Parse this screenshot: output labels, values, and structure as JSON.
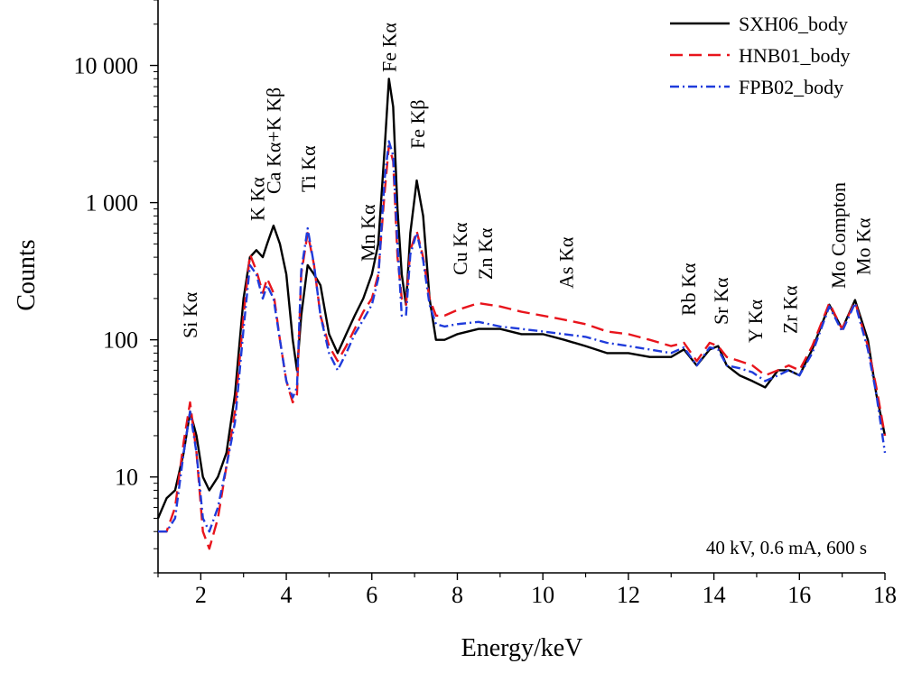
{
  "chart_data": {
    "type": "line",
    "xlabel": "Energy/keV",
    "ylabel": "Counts",
    "x_range": [
      1,
      18
    ],
    "y_range": [
      2,
      30000
    ],
    "y_scale": "log",
    "grid": false,
    "legend_position": "top-right",
    "x_ticks": [
      "2",
      "4",
      "6",
      "8",
      "10",
      "12",
      "14",
      "16",
      "18"
    ],
    "y_ticks": [
      {
        "value": 10,
        "label": "10"
      },
      {
        "value": 100,
        "label": "100"
      },
      {
        "value": 1000,
        "label": "1 000"
      },
      {
        "value": 10000,
        "label": "10 000"
      }
    ],
    "annotation": "40 kV, 0.6 mA, 600 s",
    "peak_labels": [
      {
        "energy": 1.74,
        "label": "Si Kα"
      },
      {
        "energy": 3.31,
        "label": "K Kα"
      },
      {
        "energy": 3.69,
        "label": "Ca Kα+K Kβ"
      },
      {
        "energy": 4.51,
        "label": "Ti Kα"
      },
      {
        "energy": 5.9,
        "label": "Mn Kα"
      },
      {
        "energy": 6.4,
        "label": "Fe Kα"
      },
      {
        "energy": 7.06,
        "label": "Fe Kβ"
      },
      {
        "energy": 8.05,
        "label": "Cu Kα"
      },
      {
        "energy": 8.64,
        "label": "Zn Kα"
      },
      {
        "energy": 10.54,
        "label": "As Kα"
      },
      {
        "energy": 13.4,
        "label": "Rb Kα"
      },
      {
        "energy": 14.16,
        "label": "Sr Kα"
      },
      {
        "energy": 14.96,
        "label": "Y Kα"
      },
      {
        "energy": 15.77,
        "label": "Zr Kα"
      },
      {
        "energy": 16.9,
        "label": "Mo Compton"
      },
      {
        "energy": 17.48,
        "label": "Mo Kα"
      }
    ],
    "series": [
      {
        "name": "SXH06_body",
        "color": "#000000",
        "dash": "solid",
        "x": [
          1.0,
          1.2,
          1.4,
          1.6,
          1.75,
          1.9,
          2.05,
          2.2,
          2.4,
          2.6,
          2.8,
          3.0,
          3.15,
          3.3,
          3.45,
          3.55,
          3.7,
          3.85,
          4.0,
          4.15,
          4.25,
          4.35,
          4.5,
          4.65,
          4.8,
          5.0,
          5.2,
          5.4,
          5.6,
          5.8,
          6.0,
          6.15,
          6.3,
          6.4,
          6.5,
          6.6,
          6.7,
          6.8,
          6.9,
          7.05,
          7.2,
          7.35,
          7.5,
          7.7,
          8.0,
          8.5,
          9.0,
          9.5,
          10.0,
          10.5,
          11.0,
          11.5,
          12.0,
          12.5,
          13.0,
          13.3,
          13.6,
          13.9,
          14.1,
          14.3,
          14.6,
          14.9,
          15.2,
          15.5,
          15.75,
          16.0,
          16.3,
          16.7,
          17.0,
          17.3,
          17.6,
          17.8,
          18.0
        ],
        "y": [
          5,
          7,
          8,
          15,
          30,
          20,
          10,
          8,
          10,
          15,
          40,
          200,
          400,
          450,
          400,
          500,
          680,
          500,
          300,
          100,
          60,
          150,
          350,
          300,
          250,
          110,
          80,
          110,
          150,
          200,
          300,
          500,
          2500,
          8000,
          5000,
          900,
          300,
          180,
          600,
          1450,
          800,
          200,
          100,
          100,
          110,
          120,
          120,
          110,
          110,
          100,
          90,
          80,
          80,
          75,
          75,
          85,
          65,
          85,
          90,
          65,
          55,
          50,
          45,
          60,
          60,
          55,
          85,
          180,
          120,
          195,
          100,
          40,
          20
        ]
      },
      {
        "name": "HNB01_body",
        "color": "#e8141c",
        "dash": "dashed",
        "x": [
          1.0,
          1.2,
          1.4,
          1.6,
          1.75,
          1.9,
          2.05,
          2.2,
          2.4,
          2.6,
          2.8,
          3.0,
          3.15,
          3.3,
          3.45,
          3.55,
          3.7,
          3.85,
          4.0,
          4.15,
          4.25,
          4.35,
          4.5,
          4.65,
          4.8,
          5.0,
          5.2,
          5.4,
          5.6,
          5.8,
          6.0,
          6.15,
          6.3,
          6.4,
          6.5,
          6.6,
          6.7,
          6.8,
          6.9,
          7.05,
          7.2,
          7.35,
          7.5,
          7.7,
          8.0,
          8.5,
          9.0,
          9.5,
          10.0,
          10.5,
          11.0,
          11.5,
          12.0,
          12.5,
          13.0,
          13.3,
          13.6,
          13.9,
          14.1,
          14.3,
          14.6,
          14.9,
          15.2,
          15.5,
          15.75,
          16.0,
          16.3,
          16.7,
          17.0,
          17.3,
          17.6,
          17.8,
          18.0
        ],
        "y": [
          4,
          4,
          6,
          18,
          35,
          15,
          4,
          3,
          5,
          12,
          30,
          150,
          420,
          320,
          220,
          280,
          220,
          100,
          50,
          35,
          40,
          300,
          600,
          350,
          150,
          90,
          70,
          90,
          120,
          160,
          200,
          300,
          1200,
          2600,
          2000,
          400,
          200,
          180,
          450,
          620,
          400,
          200,
          150,
          150,
          165,
          185,
          175,
          160,
          150,
          140,
          130,
          115,
          110,
          100,
          90,
          95,
          70,
          95,
          90,
          75,
          70,
          65,
          55,
          60,
          65,
          60,
          90,
          185,
          120,
          190,
          90,
          45,
          20
        ]
      },
      {
        "name": "FPB02_body",
        "color": "#1f3bdb",
        "dash": "dashdot",
        "x": [
          1.0,
          1.2,
          1.4,
          1.6,
          1.75,
          1.9,
          2.05,
          2.2,
          2.4,
          2.6,
          2.8,
          3.0,
          3.15,
          3.3,
          3.45,
          3.55,
          3.7,
          3.85,
          4.0,
          4.15,
          4.25,
          4.35,
          4.5,
          4.65,
          4.8,
          5.0,
          5.2,
          5.4,
          5.6,
          5.8,
          6.0,
          6.15,
          6.3,
          6.4,
          6.5,
          6.6,
          6.7,
          6.8,
          6.9,
          7.05,
          7.2,
          7.35,
          7.5,
          7.7,
          8.0,
          8.5,
          9.0,
          9.5,
          10.0,
          10.5,
          11.0,
          11.5,
          12.0,
          12.5,
          13.0,
          13.3,
          13.6,
          13.9,
          14.1,
          14.3,
          14.6,
          14.9,
          15.2,
          15.5,
          15.75,
          16.0,
          16.3,
          16.7,
          17.0,
          17.3,
          17.6,
          17.8,
          18.0
        ],
        "y": [
          4,
          4,
          5,
          15,
          30,
          15,
          5,
          4,
          6,
          12,
          25,
          120,
          350,
          300,
          200,
          250,
          200,
          100,
          50,
          38,
          45,
          320,
          650,
          350,
          150,
          80,
          60,
          80,
          110,
          140,
          180,
          280,
          1500,
          2800,
          2200,
          500,
          150,
          150,
          420,
          600,
          380,
          180,
          130,
          125,
          130,
          135,
          125,
          120,
          115,
          110,
          105,
          95,
          90,
          85,
          80,
          88,
          65,
          88,
          85,
          65,
          62,
          58,
          50,
          55,
          60,
          55,
          80,
          175,
          115,
          185,
          85,
          40,
          15
        ]
      }
    ]
  }
}
